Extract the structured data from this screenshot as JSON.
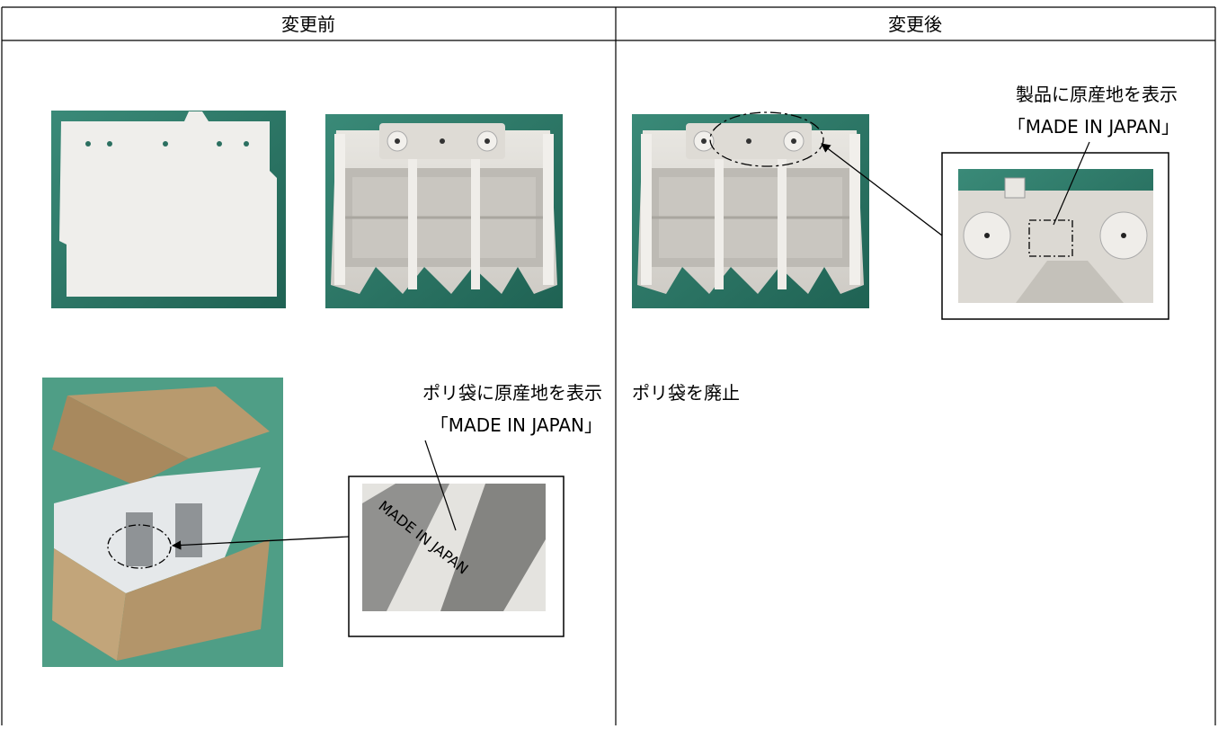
{
  "table": {
    "headers": [
      "変更前",
      "変更後"
    ]
  },
  "before": {
    "bag_label": [
      "ポリ袋に原産地を表示",
      "「MADE IN JAPAN」"
    ],
    "bag_print": "MADE IN JAPAN"
  },
  "after": {
    "product_label": [
      "製品に原産地を表示",
      "「MADE IN JAPAN」"
    ],
    "bag_note": "ポリ袋を廃止"
  }
}
